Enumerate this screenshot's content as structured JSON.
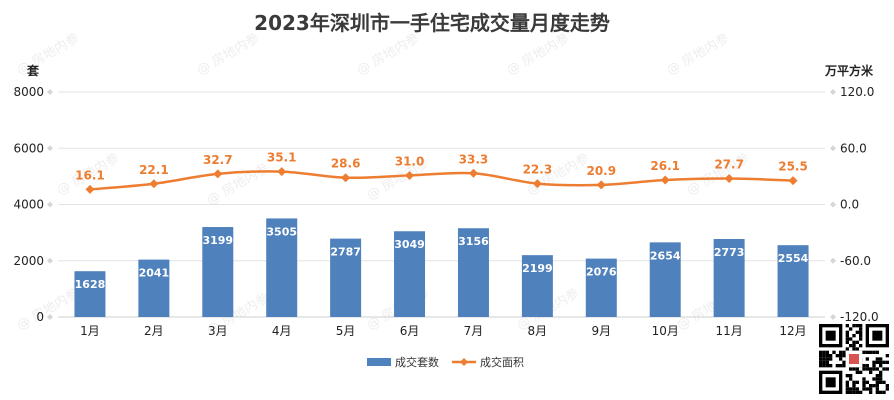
{
  "watermark": "@ 房地内参",
  "chart_data": {
    "type": "bar",
    "title": "2023年深圳市一手住宅成交量月度走势",
    "categories": [
      "1月",
      "2月",
      "3月",
      "4月",
      "5月",
      "6月",
      "7月",
      "8月",
      "9月",
      "10月",
      "11月",
      "12月"
    ],
    "series": [
      {
        "name": "成交套数",
        "type": "bar",
        "axis": "left",
        "color": "#4F81BD",
        "values": [
          1628,
          2041,
          3199,
          3505,
          2787,
          3049,
          3156,
          2199,
          2076,
          2654,
          2773,
          2554
        ]
      },
      {
        "name": "成交面积",
        "type": "line",
        "axis": "right",
        "color": "#ED7D31",
        "values": [
          16.1,
          22.1,
          32.7,
          35.1,
          28.6,
          31.0,
          33.3,
          22.3,
          20.9,
          26.1,
          27.7,
          25.5
        ],
        "value_labels": [
          "16.1",
          "22.1",
          "32.7",
          "35.1",
          "28.6",
          "31.0",
          "33.3",
          "22.3",
          "20.9",
          "26.1",
          "27.7",
          "25.5"
        ]
      }
    ],
    "y_left": {
      "unit": "套",
      "range": [
        0,
        8000
      ],
      "ticks": [
        "0",
        "2000",
        "4000",
        "6000",
        "8000"
      ]
    },
    "y_right": {
      "unit": "万平方米",
      "range": [
        -120,
        120
      ],
      "ticks": [
        "-120.0",
        "-60.0",
        "0.0",
        "60.0",
        "120.0"
      ]
    },
    "grid": true,
    "legend": "bottom"
  }
}
